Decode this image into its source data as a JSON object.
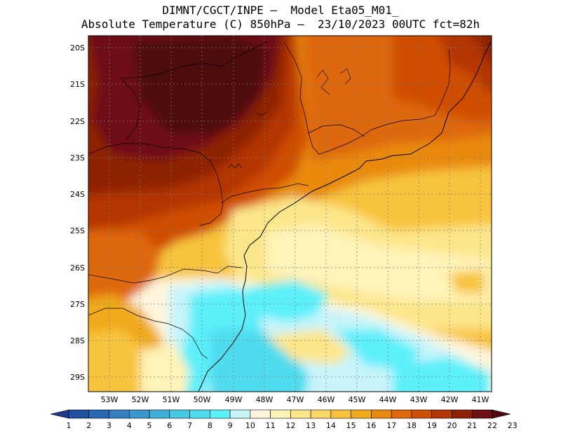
{
  "title": {
    "line1": "DIMNT/CGCT/INPE –  Model Eta05_M01_",
    "line2": "Absolute Temperature (C) 850hPa –  23/10/2023 00UTC fct=82h"
  },
  "map": {
    "lat_labels": [
      "20S",
      "21S",
      "22S",
      "23S",
      "24S",
      "25S",
      "26S",
      "27S",
      "28S",
      "29S"
    ],
    "lon_labels": [
      "53W",
      "52W",
      "51W",
      "50W",
      "49W",
      "48W",
      "47W",
      "46W",
      "45W",
      "44W",
      "43W",
      "42W",
      "41W"
    ],
    "lat_range": [
      -29.5,
      -19.5
    ],
    "lon_range": [
      -53.8,
      -40.8
    ],
    "grid": "dotted"
  },
  "colorbar": {
    "labels": [
      "1",
      "2",
      "3",
      "4",
      "5",
      "6",
      "7",
      "8",
      "9",
      "10",
      "11",
      "12",
      "13",
      "14",
      "15",
      "16",
      "17",
      "18",
      "19",
      "20",
      "21",
      "22",
      "23"
    ],
    "colors": [
      "#1e3a8a",
      "#21509e",
      "#2a67b3",
      "#3380c2",
      "#3a97cf",
      "#3fb0da",
      "#45c8e2",
      "#4fdcee",
      "#5cf0fa",
      "#c8f4fb",
      "#fef6dc",
      "#fff3b8",
      "#fde68a",
      "#fbd765",
      "#f8c43d",
      "#f0aa1c",
      "#e98a10",
      "#de680a",
      "#cf4e05",
      "#b33604",
      "#8e2006",
      "#6e0f14",
      "#4d0a10"
    ],
    "units": "C"
  }
}
